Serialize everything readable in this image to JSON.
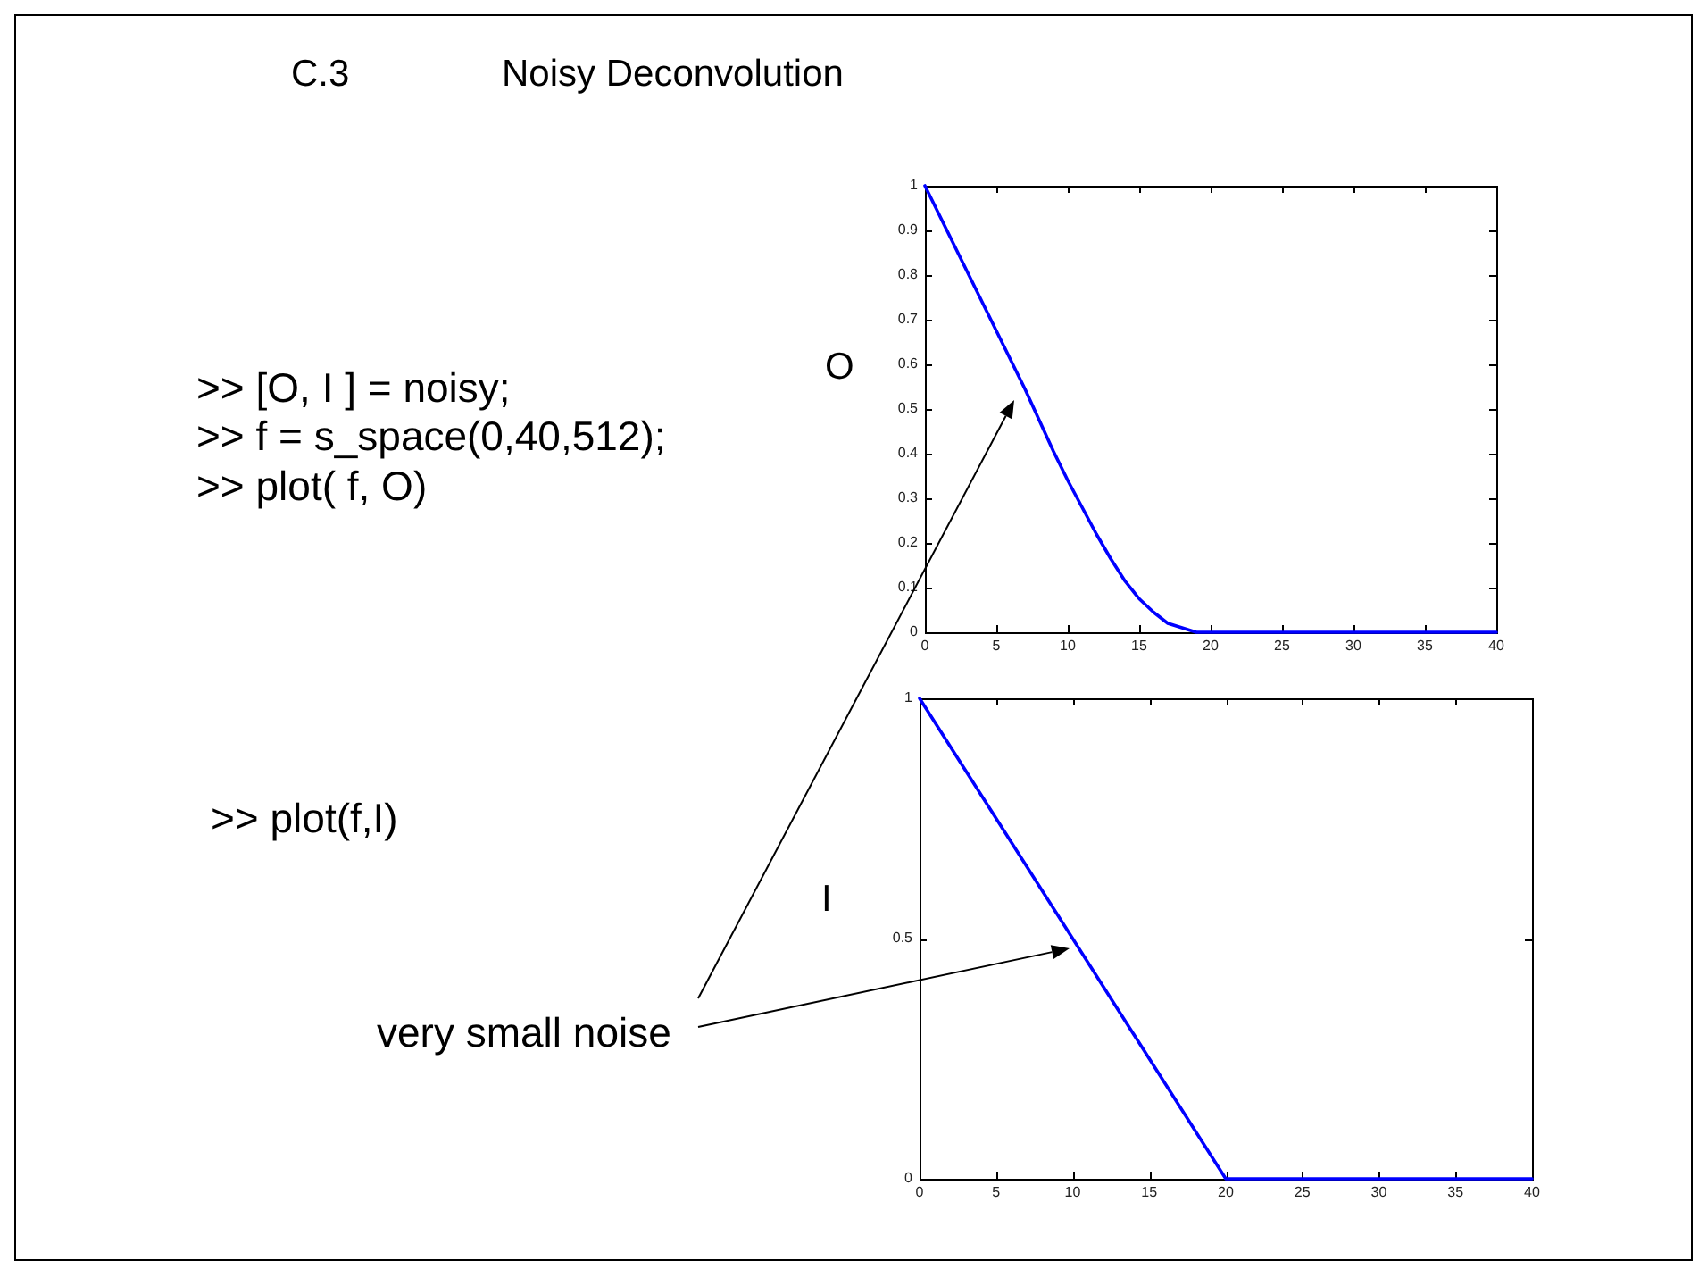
{
  "chart_data": [
    {
      "type": "line",
      "title": "Noisy Deconvolution",
      "ylabel": "O",
      "annotations": [
        "C.3",
        ">> [O, I ] = noisy;",
        ">> f = s_space(0,40,512);",
        ">> plot( f, O)"
      ],
      "x": [
        0,
        1,
        2,
        3,
        4,
        5,
        6,
        7,
        8,
        9,
        10,
        11,
        12,
        13,
        14,
        15,
        16,
        17,
        18,
        19,
        20,
        25,
        30,
        35,
        40
      ],
      "series": [
        {
          "color": "#0000ff",
          "values": [
            1,
            0.935,
            0.87,
            0.805,
            0.74,
            0.675,
            0.61,
            0.545,
            0.475,
            0.405,
            0.34,
            0.28,
            0.22,
            0.165,
            0.115,
            0.075,
            0.045,
            0.02,
            0.01,
            0,
            0,
            0,
            0,
            0,
            0
          ]
        }
      ],
      "xlim": [
        0,
        40
      ],
      "ylim": [
        0,
        1
      ],
      "xticks": [
        0,
        5,
        10,
        15,
        20,
        25,
        30,
        35,
        40
      ],
      "yticks": [
        0,
        0.1,
        0.2,
        0.3,
        0.4,
        0.5,
        0.6,
        0.7,
        0.8,
        0.9,
        1
      ],
      "line_style": "solid"
    },
    {
      "type": "line",
      "ylabel": "I",
      "annotations": [
        ">> plot(f,I)",
        "very small noise"
      ],
      "x": [
        0,
        20,
        40
      ],
      "series": [
        {
          "color": "#0000ff",
          "values": [
            1,
            0,
            0
          ]
        }
      ],
      "xlim": [
        0,
        40
      ],
      "ylim": [
        0,
        1
      ],
      "xticks": [
        0,
        5,
        10,
        15,
        20,
        25,
        30,
        35,
        40
      ],
      "yticks": [
        0,
        0.5,
        1
      ],
      "line_style": "solid"
    }
  ]
}
